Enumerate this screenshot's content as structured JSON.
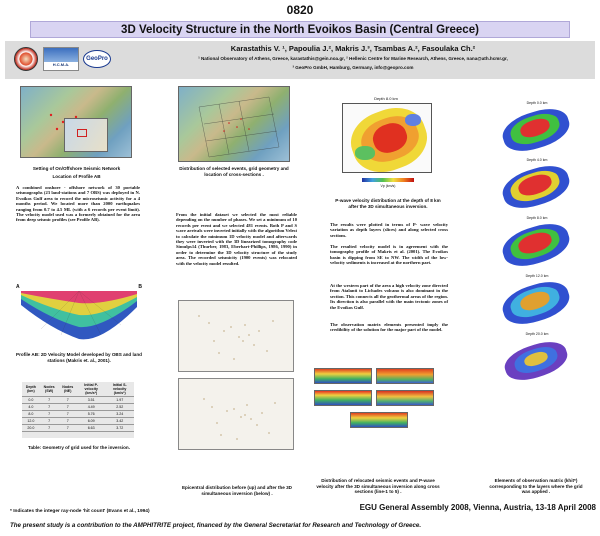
{
  "poster_number": "0820",
  "title": "3D Velocity Structure in the North Evoikos Basin (Central Greece)",
  "authors": "Karastathis V. ¹, Papoulia J.², Makris J.³, Tsambas A.², Fasoulaka Ch.²",
  "affil_1": "¹ National Observatory of Athens, Greece, karastathis@gein.noa.gr, ² Hellenic Centre for Marine Research, Athens, Greece, nana@ath.hcmr.gr,",
  "affil_2": "³ GeoPro GmbH, Hamburg, Germany, info@geopro.com",
  "logo_geopro": "GeoPro",
  "logo_hcmr": "H.C.M.A.",
  "fig1_caption": "Setting of On/Offshore Seismic Network",
  "fig1b_caption": "Location of Profile AB",
  "intro_text": "A combined onshore - offshore network of 30 portable seismographs (23 land-stations and 7 OBS) was deployed in N. Evoikos Gulf area to record the microseismic activity for a 4 months period. We located more than 2000 earthquakes ranging from 0.7 to 4.5 ML (with a 6 records per event limit). The velocity model used was a formerly obtained for the area from deep seismic profiles (see Profile AB).",
  "profile_label_a": "A",
  "profile_label_b": "B",
  "profile_caption": "Profile AB: 2D Velocity Model developed by OBS and land stations  (Makris  et. al., 2001).",
  "table": {
    "headers": [
      "Depth (km)",
      "Nodes (SW)",
      "Nodes (NE)",
      "Initial P-velocity (km/s*)",
      "Initial S-velocity (km/s*)"
    ],
    "rows": [
      [
        "0.0",
        "7",
        "7",
        "3.51",
        "1.97"
      ],
      [
        "4.0",
        "7",
        "7",
        "4.49",
        "2.52"
      ],
      [
        "8.0",
        "7",
        "7",
        "5.76",
        "3.24"
      ],
      [
        "12.0",
        "7",
        "7",
        "6.09",
        "3.42"
      ],
      [
        "20.0",
        "7",
        "7",
        "6.63",
        "3.72"
      ]
    ]
  },
  "table_caption": "Table: Geometry of grid used for the inversion.",
  "fig2_caption": "Distribution of selected events, grid geometry and location of cross-sections .",
  "method_text": "From the initial dataset we selected the most reliable depending on the number of phases. We set a minimum of 10 records per event and we selected 481 events. Both P and S wave arrivals were inverted initially with the algorithm Velest to calculate the minimum 1D velocity model and afterwards they were inverted with the 3D linearized tomography code Simulps14 (Thurber, 1983, Eberhart-Phillips, 1986, 1990) in order to determine the 3D velocity structure of the study area. The recorded seismicity (1900 events) was relocated with the velocity model resulted.",
  "epicentral_caption": "Epicentral distribution before (up) and after the 3D simultaneous inversion (below) .",
  "depth_map_title": "Depth 8.0 km",
  "depth_map_caption": "P-wave velocity distribution at the depth of 8 km after the 3D simultaneous inversion.",
  "colorbar_label": "Vp (km/s)",
  "results_text_1": "The results were plotted in terms of P- wave velocity variation as depth layers (slices) and along selected cross sections.",
  "results_text_2": "The resulted velocity model is in agreement with the tomography profile of Makris et al. (2001). The Evoikos basin is dipping from SE to NW. The width of the low-velocity sediments is increased at the northern part.",
  "results_text_3": "At the western part of the area a high velocity zone directed from Atalanti to Lichades volcano is also dominant in the section. This connects all the geothermal areas of the region. Its direction is also parallel with the main tectonic zones of the Evoikos Gulf.",
  "results_text_4": "The observation matrix elements presented imply the credibility of the solution for the major part of the model.",
  "cross_caption": "Distribution of relocated seismic events and P-wave velocity after the 3D simultaneous inversion along cross sections (line-1 to 5) .",
  "matrix_caption": "Elements of observation matrix (khit*) corresponding to the layers where the grid was applied .",
  "matrix_titles": [
    "Depth 0.0 km",
    "Depth 4.0 km",
    "Depth 8.0 km",
    "Depth 12.0 km",
    "Depth 20.0 km"
  ],
  "footnote": "* Indicates the integer ray-node 'hit count' (Evans et al., 1994)",
  "conference": "EGU General Assembly 2008, Vienna, Austria, 13-18 April 2008",
  "funding": "The present study is a contribution to the AMPHITRITE project, financed by the General Secretariat for Research and Technology of Greece.",
  "colors": {
    "title_bar": "#d9d4f2",
    "author_bar": "#dcdcdc",
    "accent_red": "#d03020"
  }
}
